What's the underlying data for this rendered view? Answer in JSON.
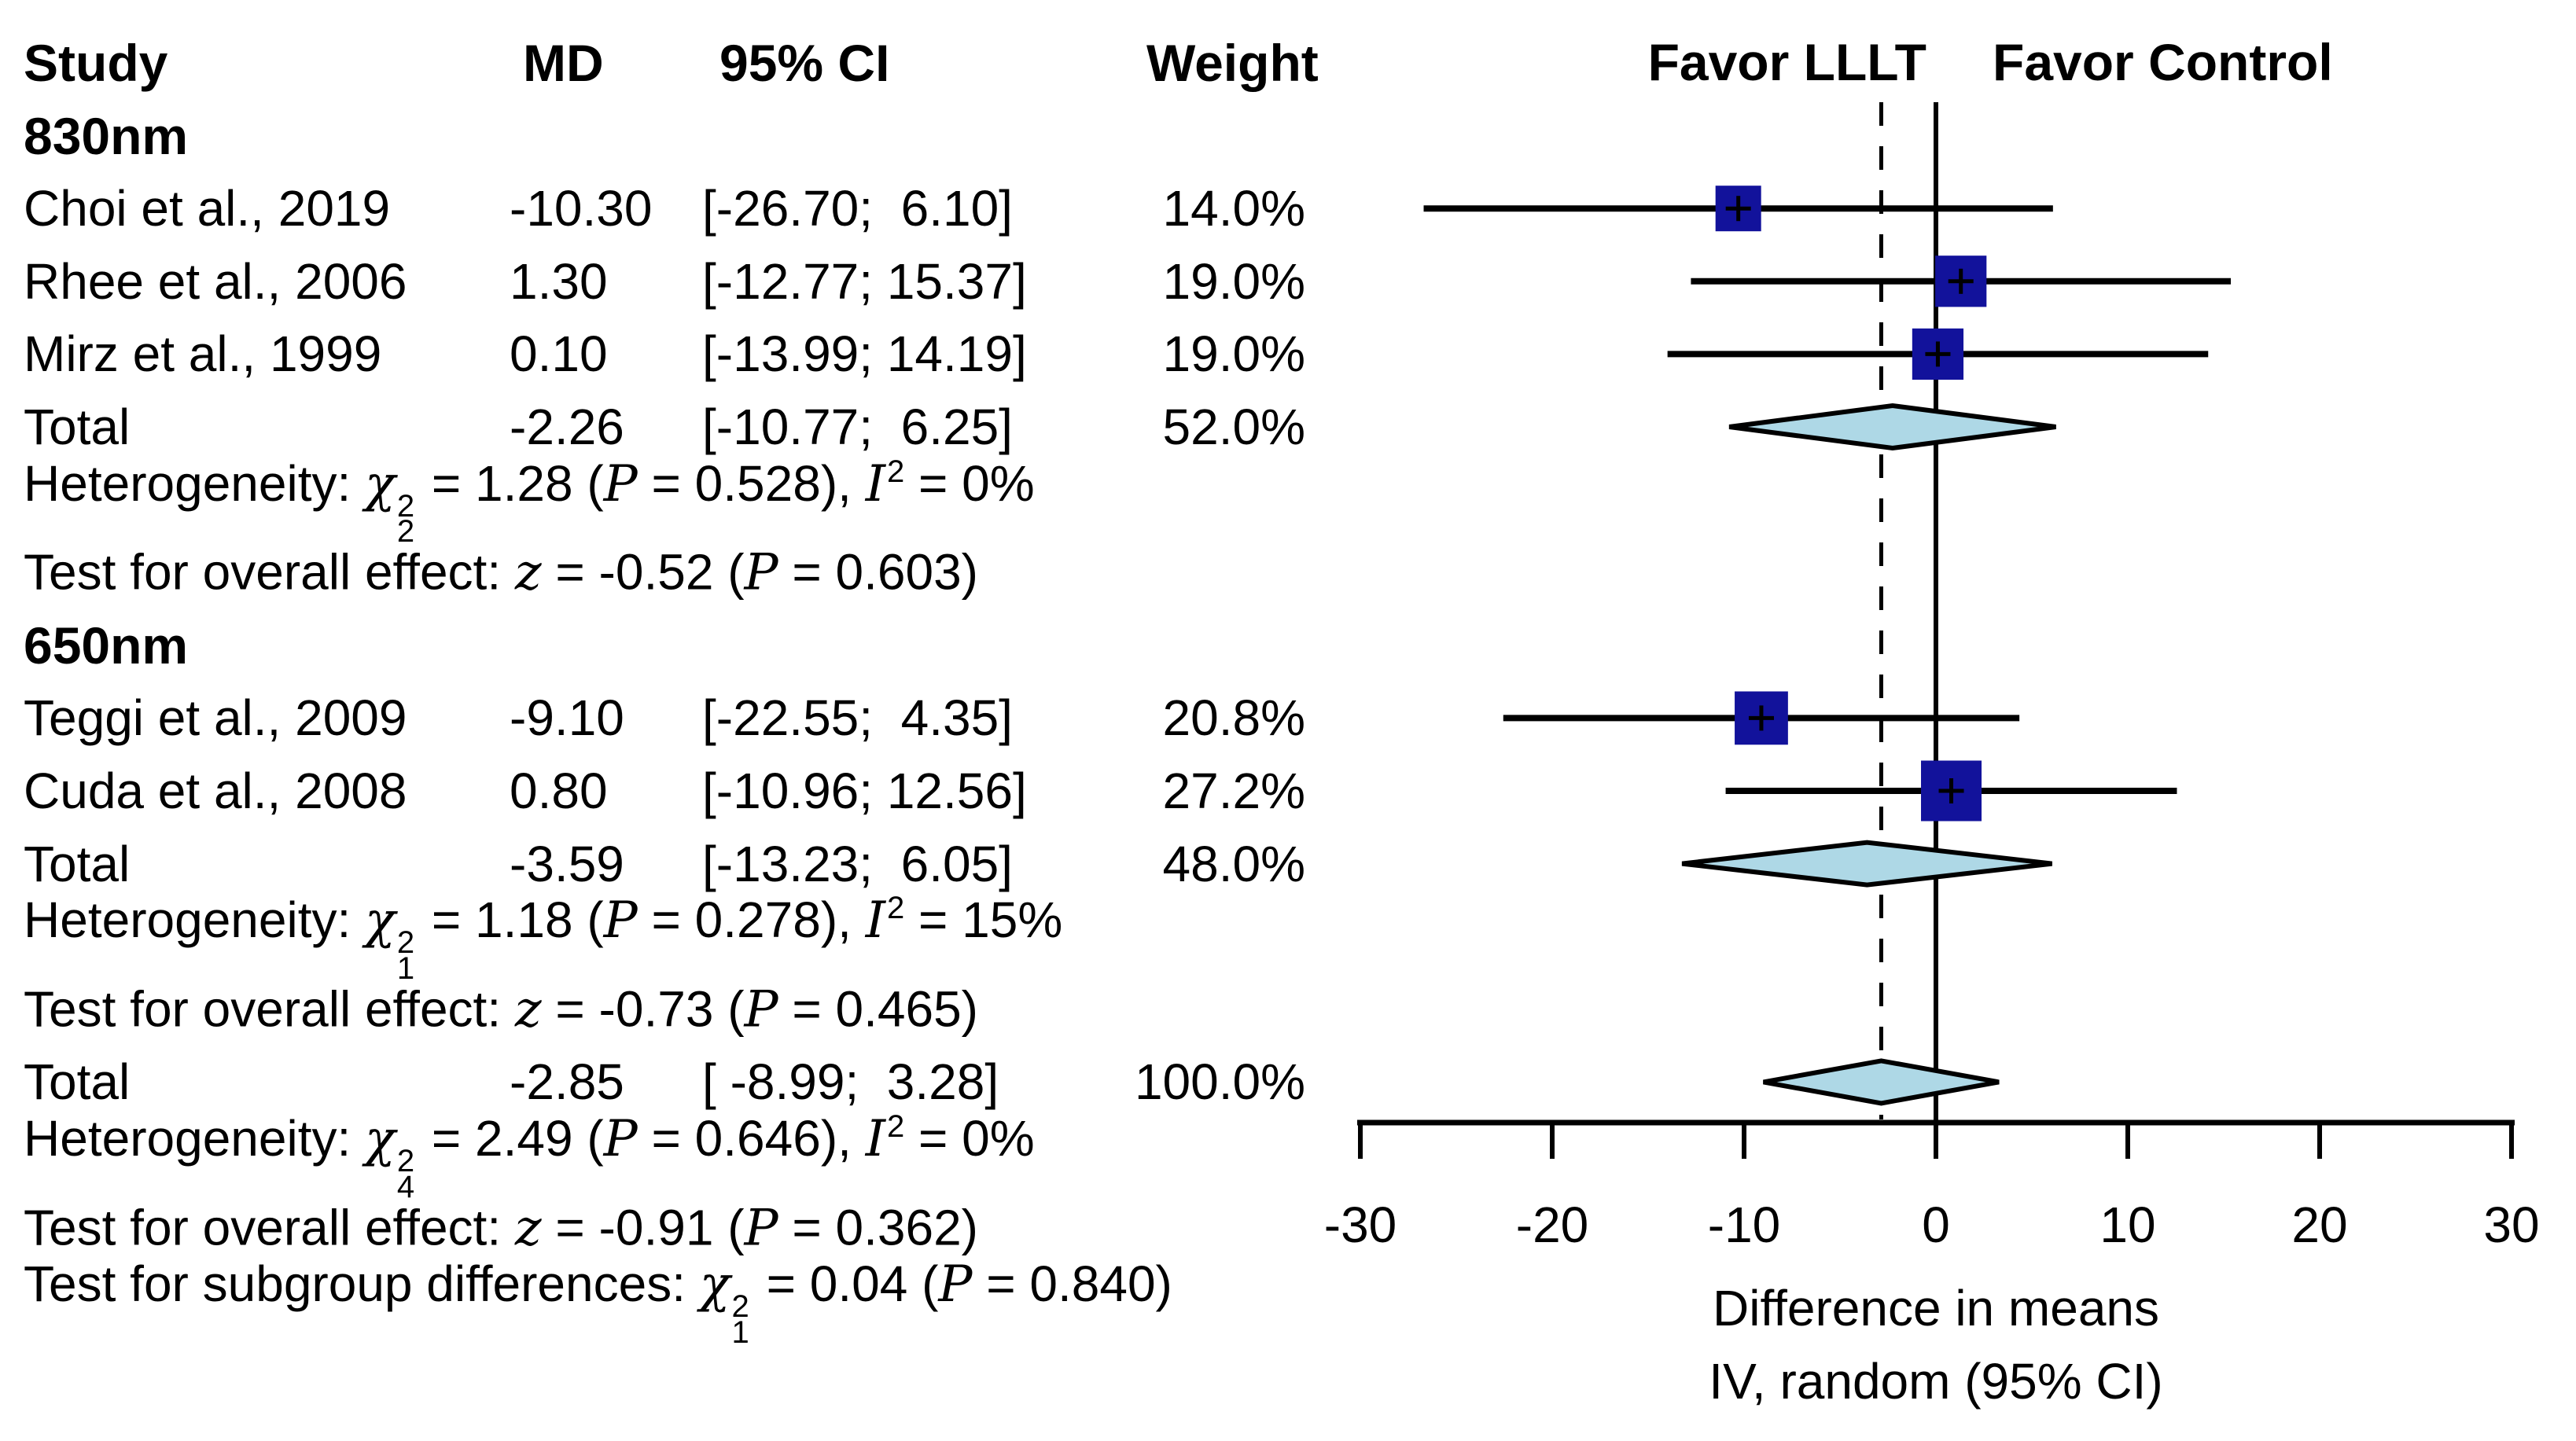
{
  "chart_data": {
    "type": "forest",
    "columns": {
      "study": "Study",
      "md": "MD",
      "ci": "95% CI",
      "weight": "Weight"
    },
    "plot_headers": {
      "left": "Favor LLLT",
      "right": "Favor Control"
    },
    "xaxis": {
      "label_line1": "Difference in means",
      "label_line2": "IV, random (95% CI)",
      "min": -30,
      "max": 30,
      "tick_values": [
        -30,
        -20,
        -10,
        0,
        10,
        20,
        30
      ],
      "tick_labels": [
        "-30",
        "-20",
        "-10",
        "0",
        "10",
        "20",
        "30"
      ]
    },
    "reference_line_x": 0,
    "dashed_line_x": -2.85,
    "colors": {
      "square": "#12129b",
      "diamond_fill": "#aed8e6",
      "line": "#000000"
    },
    "rows": [
      {
        "type": "header"
      },
      {
        "type": "group",
        "study": "830nm"
      },
      {
        "type": "study",
        "study": "Choi et al., 2019",
        "md": "-10.30",
        "ci": "[-26.70;  6.10]",
        "weight": "14.0%",
        "est": -10.3,
        "lo": -26.7,
        "hi": 6.1,
        "w": 14.0
      },
      {
        "type": "study",
        "study": "Rhee et al., 2006",
        "md": "1.30",
        "ci": "[-12.77; 15.37]",
        "weight": "19.0%",
        "est": 1.3,
        "lo": -12.77,
        "hi": 15.37,
        "w": 19.0
      },
      {
        "type": "study",
        "study": "Mirz et al., 1999",
        "md": "0.10",
        "ci": "[-13.99; 14.19]",
        "weight": "19.0%",
        "est": 0.1,
        "lo": -13.99,
        "hi": 14.19,
        "w": 19.0
      },
      {
        "type": "total",
        "study": "Total",
        "md": "-2.26",
        "ci": "[-10.77;  6.25]",
        "weight": "52.0%",
        "est": -2.26,
        "lo": -10.77,
        "hi": 6.25
      },
      {
        "type": "note",
        "tokens": [
          {
            "text": "Heterogeneity: "
          },
          {
            "text": "χ",
            "stack": {
              "sup": "2",
              "sub": "2"
            }
          },
          {
            "text": " = 1.28 ("
          },
          {
            "text": "P",
            "italic": true
          },
          {
            "text": " = 0.528), "
          },
          {
            "text": "I",
            "italic": true,
            "sup": "2"
          },
          {
            "text": " = 0%"
          }
        ]
      },
      {
        "type": "note",
        "tokens": [
          {
            "text": "Test for overall effect: "
          },
          {
            "text": "z",
            "italic": true
          },
          {
            "text": " = -0.52 ("
          },
          {
            "text": "P",
            "italic": true
          },
          {
            "text": " = 0.603)"
          }
        ]
      },
      {
        "type": "group",
        "study": "650nm"
      },
      {
        "type": "study",
        "study": "Teggi et al., 2009",
        "md": "-9.10",
        "ci": "[-22.55;  4.35]",
        "weight": "20.8%",
        "est": -9.1,
        "lo": -22.55,
        "hi": 4.35,
        "w": 20.8
      },
      {
        "type": "study",
        "study": "Cuda et al., 2008",
        "md": "0.80",
        "ci": "[-10.96; 12.56]",
        "weight": "27.2%",
        "est": 0.8,
        "lo": -10.96,
        "hi": 12.56,
        "w": 27.2
      },
      {
        "type": "total",
        "study": "Total",
        "md": "-3.59",
        "ci": "[-13.23;  6.05]",
        "weight": "48.0%",
        "est": -3.59,
        "lo": -13.23,
        "hi": 6.05
      },
      {
        "type": "note",
        "tokens": [
          {
            "text": "Heterogeneity: "
          },
          {
            "text": "χ",
            "stack": {
              "sup": "2",
              "sub": "1"
            }
          },
          {
            "text": " = 1.18 ("
          },
          {
            "text": "P",
            "italic": true
          },
          {
            "text": " = 0.278), "
          },
          {
            "text": "I",
            "italic": true,
            "sup": "2"
          },
          {
            "text": " = 15%"
          }
        ]
      },
      {
        "type": "note",
        "tokens": [
          {
            "text": "Test for overall effect: "
          },
          {
            "text": "z",
            "italic": true
          },
          {
            "text": " = -0.73 ("
          },
          {
            "text": "P",
            "italic": true
          },
          {
            "text": " = 0.465)"
          }
        ]
      },
      {
        "type": "total",
        "study": "Total",
        "md": "-2.85",
        "ci": "[ -8.99;  3.28]",
        "weight": "100.0%",
        "est": -2.85,
        "lo": -8.99,
        "hi": 3.28
      },
      {
        "type": "note",
        "tokens": [
          {
            "text": "Heterogeneity: "
          },
          {
            "text": "χ",
            "stack": {
              "sup": "2",
              "sub": "4"
            }
          },
          {
            "text": " = 2.49 ("
          },
          {
            "text": "P",
            "italic": true
          },
          {
            "text": " = 0.646), "
          },
          {
            "text": "I",
            "italic": true,
            "sup": "2"
          },
          {
            "text": " = 0%"
          }
        ]
      },
      {
        "type": "note",
        "tokens": [
          {
            "text": "Test for overall effect: "
          },
          {
            "text": "z",
            "italic": true
          },
          {
            "text": " = -0.91 ("
          },
          {
            "text": "P",
            "italic": true
          },
          {
            "text": " = 0.362)"
          }
        ]
      },
      {
        "type": "note",
        "tokens": [
          {
            "text": "Test for subgroup differences: "
          },
          {
            "text": "χ",
            "stack": {
              "sup": "2",
              "sub": "1"
            }
          },
          {
            "text": " = 0.04 ("
          },
          {
            "text": "P",
            "italic": true
          },
          {
            "text": " = 0.840)"
          }
        ]
      }
    ]
  }
}
